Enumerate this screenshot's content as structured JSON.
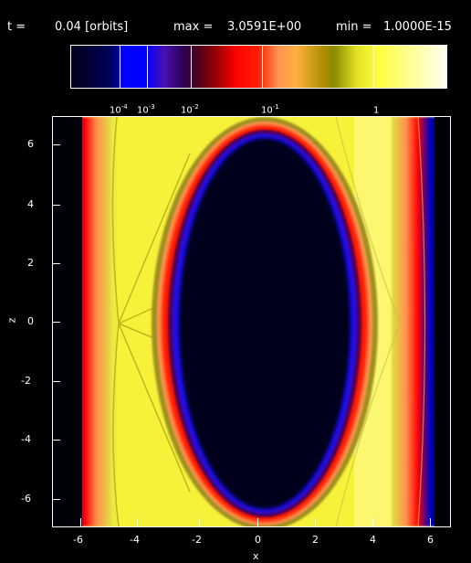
{
  "header": {
    "time_label": "t =",
    "time_value": "0.04 [orbits]",
    "max_label": "max =",
    "max_value": "3.0591E+00",
    "min_label": "min =",
    "min_value": "1.0000E-15"
  },
  "colorbar": {
    "labels": [
      {
        "base": "10",
        "exp": "-4"
      },
      {
        "base": "10",
        "exp": "-3"
      },
      {
        "base": "10",
        "exp": "-2"
      },
      {
        "base": "10",
        "exp": "-1"
      },
      {
        "base": "1",
        "exp": ""
      }
    ]
  },
  "plot": {
    "xlabel": "x",
    "ylabel": "z",
    "xticks": [
      "-6",
      "-4",
      "-2",
      "0",
      "2",
      "4",
      "6"
    ],
    "yticks": [
      "6",
      "4",
      "2",
      "0",
      "-2",
      "-4",
      "-6"
    ]
  },
  "colors": {
    "background": "#000000",
    "cavity": "#00001a",
    "fill": "#ffff40"
  }
}
